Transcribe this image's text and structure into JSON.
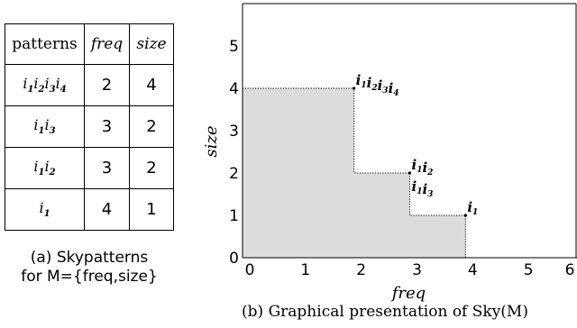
{
  "table": {
    "headers": {
      "patterns": "patterns",
      "freq": "freq",
      "size": "size"
    },
    "rows": [
      {
        "items": [
          "1",
          "2",
          "3",
          "4"
        ],
        "freq": "2",
        "size": "4"
      },
      {
        "items": [
          "1",
          "3"
        ],
        "freq": "3",
        "size": "2"
      },
      {
        "items": [
          "1",
          "2"
        ],
        "freq": "3",
        "size": "2"
      },
      {
        "items": [
          "1"
        ],
        "freq": "4",
        "size": "1"
      }
    ],
    "caption_line1": "(a) Skypatterns",
    "caption_line2": "for M={freq,size}"
  },
  "chart_data": {
    "type": "scatter",
    "xlabel": "freq",
    "ylabel": "size",
    "xlim": [
      0,
      6
    ],
    "ylim": [
      0,
      6
    ],
    "x_ticks": [
      "0",
      "1",
      "2",
      "3",
      "4",
      "5",
      "6"
    ],
    "y_ticks": [
      "0",
      "1",
      "2",
      "3",
      "4",
      "5"
    ],
    "points": [
      {
        "x": 2,
        "y": 4,
        "labels": [
          [
            "1",
            "2",
            "3",
            "4"
          ]
        ]
      },
      {
        "x": 3,
        "y": 2,
        "labels": [
          [
            "1",
            "2"
          ],
          [
            "1",
            "3"
          ]
        ]
      },
      {
        "x": 4,
        "y": 1,
        "labels": [
          [
            "1"
          ]
        ]
      }
    ],
    "dominated_region_fill": "#dcdcdc",
    "caption": "(b) Graphical presentation of Sky(M)"
  }
}
